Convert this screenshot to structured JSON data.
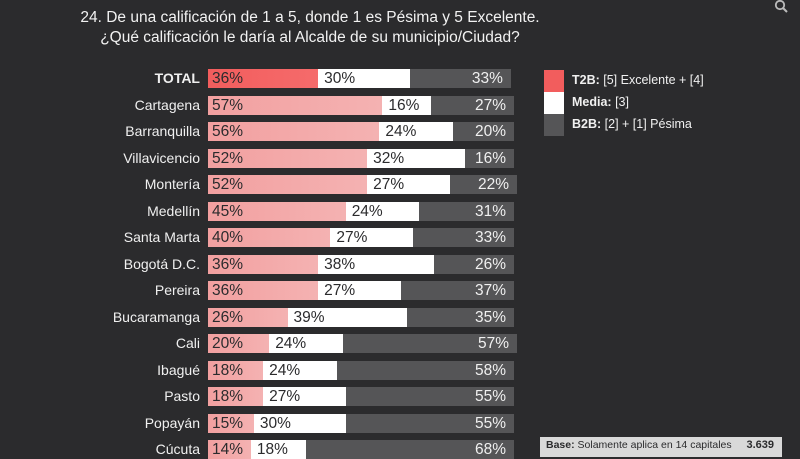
{
  "title_line1": "24. De una calificación de 1 a 5, donde 1 es Pésima y 5 Excelente.",
  "title_line2": "¿Qué calificación le daría al Alcalde de su municipio/Ciudad?",
  "colors": {
    "t2b_strong": "#f25d5d",
    "t2b": "#f2a0a0",
    "media": "#ffffff",
    "b2b": "#555557"
  },
  "legend": [
    {
      "key": "T2B:",
      "text": "[5] Excelente + [4]",
      "color": "#f25d5d"
    },
    {
      "key": "Media:",
      "text": "[3]",
      "color": "#ffffff"
    },
    {
      "key": "B2B:",
      "text": "[2] + [1] Pésima",
      "color": "#555557"
    }
  ],
  "base": {
    "label": "Base:",
    "text": "Solamente aplica en 14 capitales",
    "n": "3.639"
  },
  "chart_data": {
    "type": "bar",
    "stacked": true,
    "orientation": "horizontal",
    "unit": "%",
    "categories": [
      "TOTAL",
      "Cartagena",
      "Barranquilla",
      "Villavicencio",
      "Montería",
      "Medellín",
      "Santa Marta",
      "Bogotá D.C.",
      "Pereira",
      "Bucaramanga",
      "Cali",
      "Ibagué",
      "Pasto",
      "Popayán",
      "Cúcuta"
    ],
    "series": [
      {
        "name": "T2B",
        "values": [
          36,
          57,
          56,
          52,
          52,
          45,
          40,
          36,
          36,
          26,
          20,
          18,
          18,
          15,
          14
        ]
      },
      {
        "name": "Media",
        "values": [
          30,
          16,
          24,
          32,
          27,
          24,
          27,
          38,
          27,
          39,
          24,
          24,
          27,
          30,
          18
        ]
      },
      {
        "name": "B2B",
        "values": [
          33,
          27,
          20,
          16,
          22,
          31,
          33,
          26,
          37,
          35,
          57,
          58,
          55,
          55,
          68
        ]
      }
    ]
  }
}
